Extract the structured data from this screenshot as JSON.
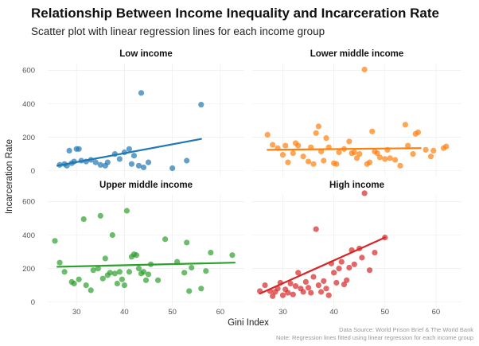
{
  "title": "Relationship Between Income Inequality and Incarceration Rate",
  "subtitle": "Scatter plot with linear regression lines for each income group",
  "caption": [
    "Data Source: World Prison Brief & The World Bank",
    "Note: Regression lines fitted using linear regression for each income group"
  ],
  "chart_data": {
    "type": "scatter",
    "xlabel": "Gini Index",
    "ylabel": "Incarceration Rate",
    "xlim": [
      24,
      65
    ],
    "x_ticks": [
      30,
      40,
      50,
      60
    ],
    "ylim": [
      -35,
      640
    ],
    "y_ticks": [
      0,
      200,
      400,
      600
    ],
    "facets": [
      {
        "name": "Low income",
        "color": "#1f77b4",
        "regression": {
          "x": [
            26,
            56
          ],
          "y": [
            30,
            190
          ]
        },
        "points": [
          [
            26.5,
            35
          ],
          [
            27.5,
            40
          ],
          [
            28,
            30
          ],
          [
            28.5,
            120
          ],
          [
            29,
            45
          ],
          [
            29.5,
            55
          ],
          [
            30,
            130
          ],
          [
            30.5,
            130
          ],
          [
            31,
            60
          ],
          [
            32,
            55
          ],
          [
            33,
            65
          ],
          [
            34,
            50
          ],
          [
            35,
            35
          ],
          [
            36,
            30
          ],
          [
            36.5,
            50
          ],
          [
            38,
            100
          ],
          [
            39,
            70
          ],
          [
            40,
            110
          ],
          [
            41,
            130
          ],
          [
            41.5,
            40
          ],
          [
            42,
            90
          ],
          [
            43,
            30
          ],
          [
            43.5,
            465
          ],
          [
            44,
            20
          ],
          [
            45,
            50
          ],
          [
            50,
            15
          ],
          [
            53,
            60
          ],
          [
            56,
            395
          ]
        ]
      },
      {
        "name": "Lower middle income",
        "color": "#ff7f0e",
        "regression": {
          "x": [
            27,
            57
          ],
          "y": [
            125,
            135
          ]
        },
        "points": [
          [
            27,
            215
          ],
          [
            28,
            155
          ],
          [
            29,
            135
          ],
          [
            30,
            95
          ],
          [
            30.5,
            150
          ],
          [
            31,
            50
          ],
          [
            32,
            105
          ],
          [
            32.5,
            165
          ],
          [
            33,
            150
          ],
          [
            34,
            85
          ],
          [
            35,
            55
          ],
          [
            35.5,
            140
          ],
          [
            36,
            40
          ],
          [
            36.5,
            225
          ],
          [
            37,
            265
          ],
          [
            37.5,
            115
          ],
          [
            38,
            60
          ],
          [
            38.5,
            195
          ],
          [
            39,
            140
          ],
          [
            40,
            45
          ],
          [
            40.5,
            40
          ],
          [
            41,
            110
          ],
          [
            42,
            130
          ],
          [
            43,
            175
          ],
          [
            43.5,
            105
          ],
          [
            44,
            110
          ],
          [
            44.5,
            75
          ],
          [
            45,
            100
          ],
          [
            46,
            605
          ],
          [
            46.5,
            40
          ],
          [
            47,
            50
          ],
          [
            47.5,
            235
          ],
          [
            48,
            115
          ],
          [
            48.5,
            105
          ],
          [
            49,
            80
          ],
          [
            50,
            70
          ],
          [
            50.5,
            125
          ],
          [
            51,
            75
          ],
          [
            52,
            65
          ],
          [
            53,
            30
          ],
          [
            54,
            275
          ],
          [
            54.5,
            150
          ],
          [
            55.5,
            100
          ],
          [
            56,
            220
          ],
          [
            56.5,
            230
          ],
          [
            58,
            125
          ],
          [
            59,
            85
          ],
          [
            59.5,
            120
          ],
          [
            61.5,
            135
          ],
          [
            62,
            145
          ]
        ]
      },
      {
        "name": "Upper middle income",
        "color": "#2ca02c",
        "regression": {
          "x": [
            26,
            63
          ],
          "y": [
            210,
            235
          ]
        },
        "points": [
          [
            25.5,
            365
          ],
          [
            26.5,
            235
          ],
          [
            27.5,
            180
          ],
          [
            29,
            120
          ],
          [
            29.5,
            110
          ],
          [
            30.5,
            135
          ],
          [
            31.5,
            495
          ],
          [
            32,
            100
          ],
          [
            33,
            70
          ],
          [
            33.5,
            190
          ],
          [
            34.5,
            200
          ],
          [
            35,
            515
          ],
          [
            35.5,
            140
          ],
          [
            36,
            260
          ],
          [
            36.5,
            160
          ],
          [
            37,
            175
          ],
          [
            37.5,
            400
          ],
          [
            38,
            170
          ],
          [
            38.5,
            110
          ],
          [
            39,
            180
          ],
          [
            39.5,
            135
          ],
          [
            40,
            100
          ],
          [
            40.5,
            545
          ],
          [
            41,
            180
          ],
          [
            41.5,
            270
          ],
          [
            42,
            285
          ],
          [
            42.5,
            280
          ],
          [
            43,
            200
          ],
          [
            43.5,
            170
          ],
          [
            44,
            180
          ],
          [
            44.5,
            130
          ],
          [
            45,
            165
          ],
          [
            45.5,
            225
          ],
          [
            47,
            130
          ],
          [
            48.5,
            375
          ],
          [
            51,
            240
          ],
          [
            52.5,
            175
          ],
          [
            53,
            355
          ],
          [
            54,
            205
          ],
          [
            56,
            80
          ],
          [
            57,
            185
          ],
          [
            58,
            295
          ],
          [
            53.5,
            65
          ],
          [
            62.5,
            280
          ]
        ]
      },
      {
        "name": "High income",
        "color": "#d62728",
        "regression": {
          "x": [
            25.5,
            50
          ],
          "y": [
            50,
            385
          ]
        },
        "points": [
          [
            25.5,
            65
          ],
          [
            26.5,
            100
          ],
          [
            27.5,
            65
          ],
          [
            28,
            35
          ],
          [
            28.5,
            60
          ],
          [
            29,
            80
          ],
          [
            29.5,
            115
          ],
          [
            30,
            40
          ],
          [
            30.5,
            75
          ],
          [
            31,
            55
          ],
          [
            31.5,
            110
          ],
          [
            32,
            45
          ],
          [
            32.5,
            95
          ],
          [
            33,
            175
          ],
          [
            33.5,
            80
          ],
          [
            34,
            60
          ],
          [
            34.5,
            120
          ],
          [
            35,
            85
          ],
          [
            35.5,
            55
          ],
          [
            36,
            150
          ],
          [
            36.5,
            435
          ],
          [
            37,
            100
          ],
          [
            37.5,
            60
          ],
          [
            38,
            125
          ],
          [
            38.5,
            80
          ],
          [
            39,
            40
          ],
          [
            39.5,
            230
          ],
          [
            40,
            175
          ],
          [
            40.5,
            115
          ],
          [
            41,
            200
          ],
          [
            41.5,
            240
          ],
          [
            42,
            105
          ],
          [
            42.5,
            130
          ],
          [
            43,
            205
          ],
          [
            43.5,
            310
          ],
          [
            44,
            225
          ],
          [
            45,
            320
          ],
          [
            45.5,
            265
          ],
          [
            46,
            650
          ],
          [
            47,
            190
          ],
          [
            48,
            295
          ],
          [
            50,
            385
          ]
        ]
      }
    ]
  }
}
